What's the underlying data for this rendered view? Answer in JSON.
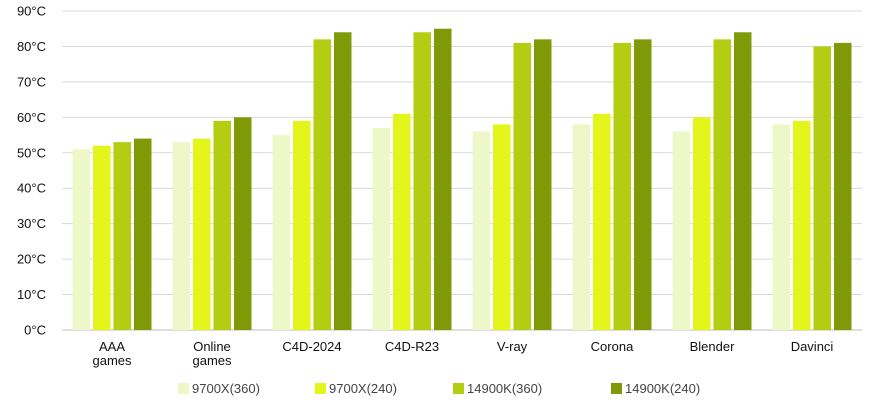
{
  "chart_data": {
    "type": "bar",
    "title": "",
    "xlabel": "",
    "ylabel": "",
    "ylim": [
      0,
      90
    ],
    "yticks": [
      {
        "value": 0,
        "label": "0°C"
      },
      {
        "value": 10,
        "label": "10°C"
      },
      {
        "value": 20,
        "label": "20°C"
      },
      {
        "value": 30,
        "label": "30°C"
      },
      {
        "value": 40,
        "label": "40°C"
      },
      {
        "value": 50,
        "label": "50°C"
      },
      {
        "value": 60,
        "label": "60°C"
      },
      {
        "value": 70,
        "label": "70°C"
      },
      {
        "value": 80,
        "label": "80°C"
      },
      {
        "value": 90,
        "label": "90°C"
      }
    ],
    "grid": true,
    "legend_position": "bottom",
    "categories": [
      [
        "AAA",
        "games"
      ],
      [
        "Online",
        "games"
      ],
      [
        "C4D-2024"
      ],
      [
        "C4D-R23"
      ],
      [
        "V-ray"
      ],
      [
        "Corona"
      ],
      [
        "Blender"
      ],
      [
        "Davinci"
      ]
    ],
    "series": [
      {
        "name": "9700X(360)",
        "color": "#eef7c8",
        "values": [
          51,
          53,
          55,
          57,
          56,
          58,
          56,
          58
        ]
      },
      {
        "name": "9700X(240)",
        "color": "#e4f51c",
        "values": [
          52,
          54,
          59,
          61,
          58,
          61,
          60,
          59
        ]
      },
      {
        "name": "14900K(360)",
        "color": "#b4cc12",
        "values": [
          53,
          59,
          82,
          84,
          81,
          81,
          82,
          80
        ]
      },
      {
        "name": "14900K(240)",
        "color": "#7f9a06",
        "values": [
          54,
          60,
          84,
          85,
          82,
          82,
          84,
          81
        ]
      }
    ]
  }
}
